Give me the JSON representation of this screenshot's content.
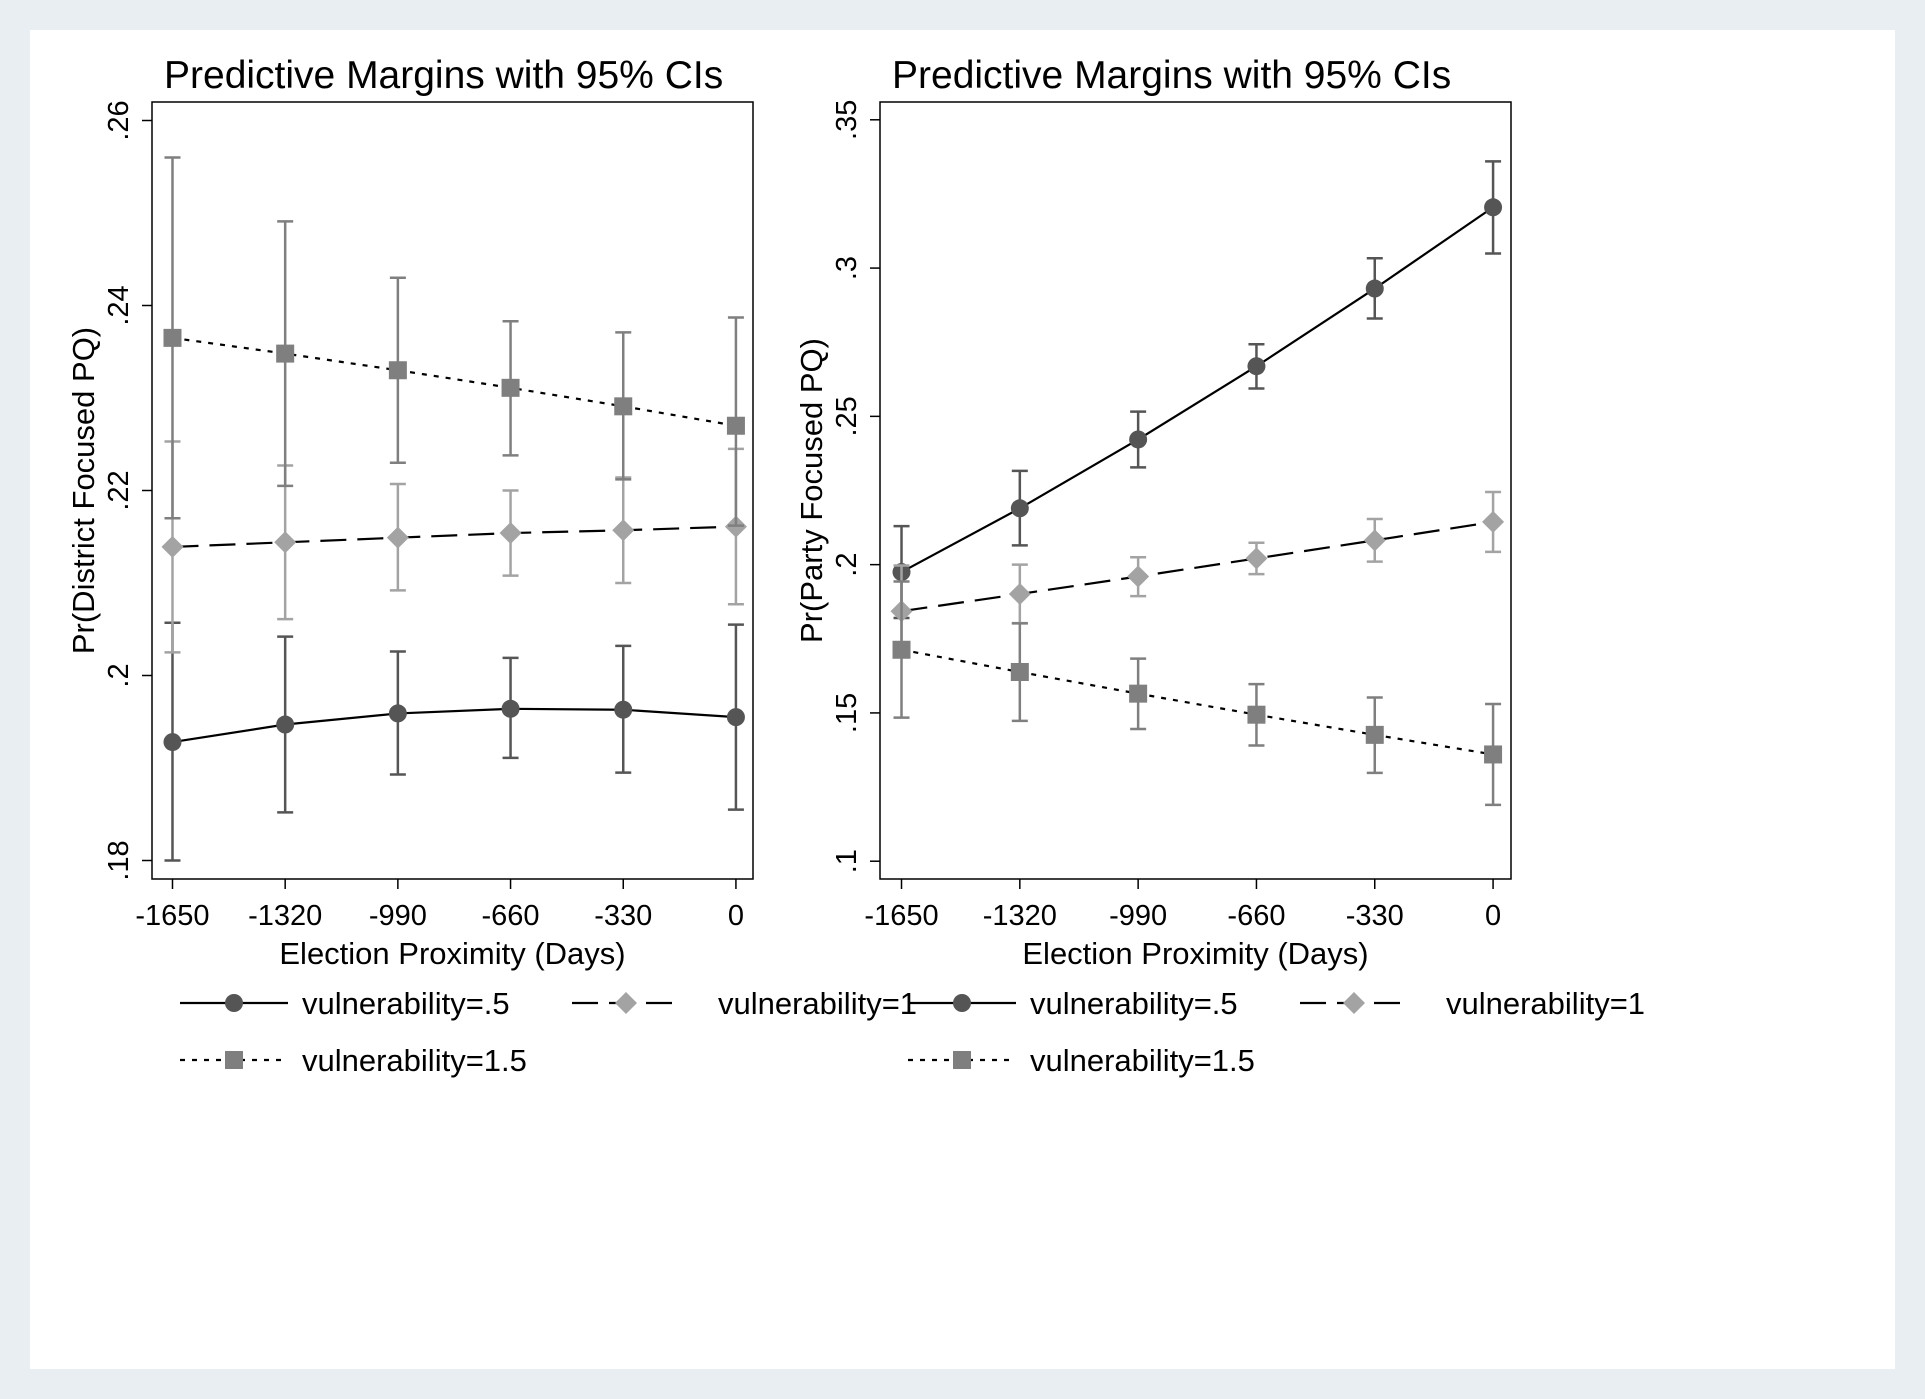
{
  "colors": {
    "background": "#e9eef2",
    "plot_area": "#ffffff",
    "series_0_5": "#555555",
    "series_1": "#a3a3a3",
    "series_1_5": "#7f7f7f"
  },
  "chart_data": [
    {
      "type": "line",
      "title": "Predictive Margins with 95% CIs",
      "xlabel": "Election Proximity (Days)",
      "ylabel": "Pr(District Focused PQ)",
      "x": [
        -1650,
        -1320,
        -990,
        -660,
        -330,
        0
      ],
      "x_tick_labels": [
        "-1650",
        "-1320",
        "-990",
        "-660",
        "-330",
        "0"
      ],
      "y_ticks": [
        0.18,
        0.2,
        0.22,
        0.24,
        0.26
      ],
      "y_tick_labels": [
        ".18",
        ".2",
        ".22",
        ".24",
        ".26"
      ],
      "xlim": [
        -1710,
        50
      ],
      "ylim": [
        0.178,
        0.262
      ],
      "grid": false,
      "legend_position": "bottom",
      "series": [
        {
          "name": "vulnerability=.5",
          "line": "solid",
          "marker": "circle",
          "values": [
            0.1928,
            0.1947,
            0.1959,
            0.1964,
            0.1963,
            0.1955
          ],
          "ci_low": [
            0.18,
            0.1852,
            0.1893,
            0.1911,
            0.1895,
            0.1855
          ],
          "ci_high": [
            0.2057,
            0.2042,
            0.2026,
            0.2019,
            0.2032,
            0.2055
          ]
        },
        {
          "name": "vulnerability=1",
          "line": "dash",
          "marker": "diamond",
          "values": [
            0.2139,
            0.2144,
            0.2149,
            0.2154,
            0.2157,
            0.2161
          ],
          "ci_low": [
            0.2025,
            0.2061,
            0.2092,
            0.2108,
            0.21,
            0.2077
          ],
          "ci_high": [
            0.2253,
            0.2227,
            0.2207,
            0.22,
            0.2214,
            0.2245
          ]
        },
        {
          "name": "vulnerability=1.5",
          "line": "dot",
          "marker": "square",
          "values": [
            0.2365,
            0.2348,
            0.233,
            0.2311,
            0.2291,
            0.227
          ],
          "ci_low": [
            0.217,
            0.2205,
            0.223,
            0.2238,
            0.2212,
            0.2162
          ],
          "ci_high": [
            0.256,
            0.2491,
            0.243,
            0.2383,
            0.2371,
            0.2387
          ]
        }
      ]
    },
    {
      "type": "line",
      "title": "Predictive Margins with 95% CIs",
      "xlabel": "Election Proximity (Days)",
      "ylabel": "Pr(Party Focused PQ)",
      "x": [
        -1650,
        -1320,
        -990,
        -660,
        -330,
        0
      ],
      "x_tick_labels": [
        "-1650",
        "-1320",
        "-990",
        "-660",
        "-330",
        "0"
      ],
      "y_ticks": [
        0.1,
        0.15,
        0.2,
        0.25,
        0.3,
        0.35
      ],
      "y_tick_labels": [
        ".1",
        ".15",
        ".2",
        ".25",
        ".3",
        ".35"
      ],
      "xlim": [
        -1710,
        50
      ],
      "ylim": [
        0.094,
        0.356
      ],
      "grid": false,
      "legend_position": "bottom",
      "series": [
        {
          "name": "vulnerability=.5",
          "line": "solid",
          "marker": "circle",
          "values": [
            0.1975,
            0.219,
            0.2422,
            0.2669,
            0.2931,
            0.3205
          ],
          "ci_low": [
            0.182,
            0.2065,
            0.2328,
            0.2594,
            0.283,
            0.3049
          ],
          "ci_high": [
            0.213,
            0.2316,
            0.2516,
            0.2743,
            0.3033,
            0.336
          ]
        },
        {
          "name": "vulnerability=1",
          "line": "dash",
          "marker": "diamond",
          "values": [
            0.1843,
            0.1901,
            0.196,
            0.2021,
            0.2082,
            0.2144
          ],
          "ci_low": [
            0.169,
            0.1803,
            0.1894,
            0.1968,
            0.201,
            0.2043
          ],
          "ci_high": [
            0.1997,
            0.2,
            0.2025,
            0.2074,
            0.2154,
            0.2245
          ]
        },
        {
          "name": "vulnerability=1.5",
          "line": "dot",
          "marker": "square",
          "values": [
            0.1713,
            0.1638,
            0.1565,
            0.1494,
            0.1426,
            0.136
          ],
          "ci_low": [
            0.1484,
            0.1473,
            0.1446,
            0.139,
            0.1298,
            0.119
          ],
          "ci_high": [
            0.1943,
            0.1802,
            0.1683,
            0.1597,
            0.1552,
            0.153
          ]
        }
      ]
    }
  ]
}
